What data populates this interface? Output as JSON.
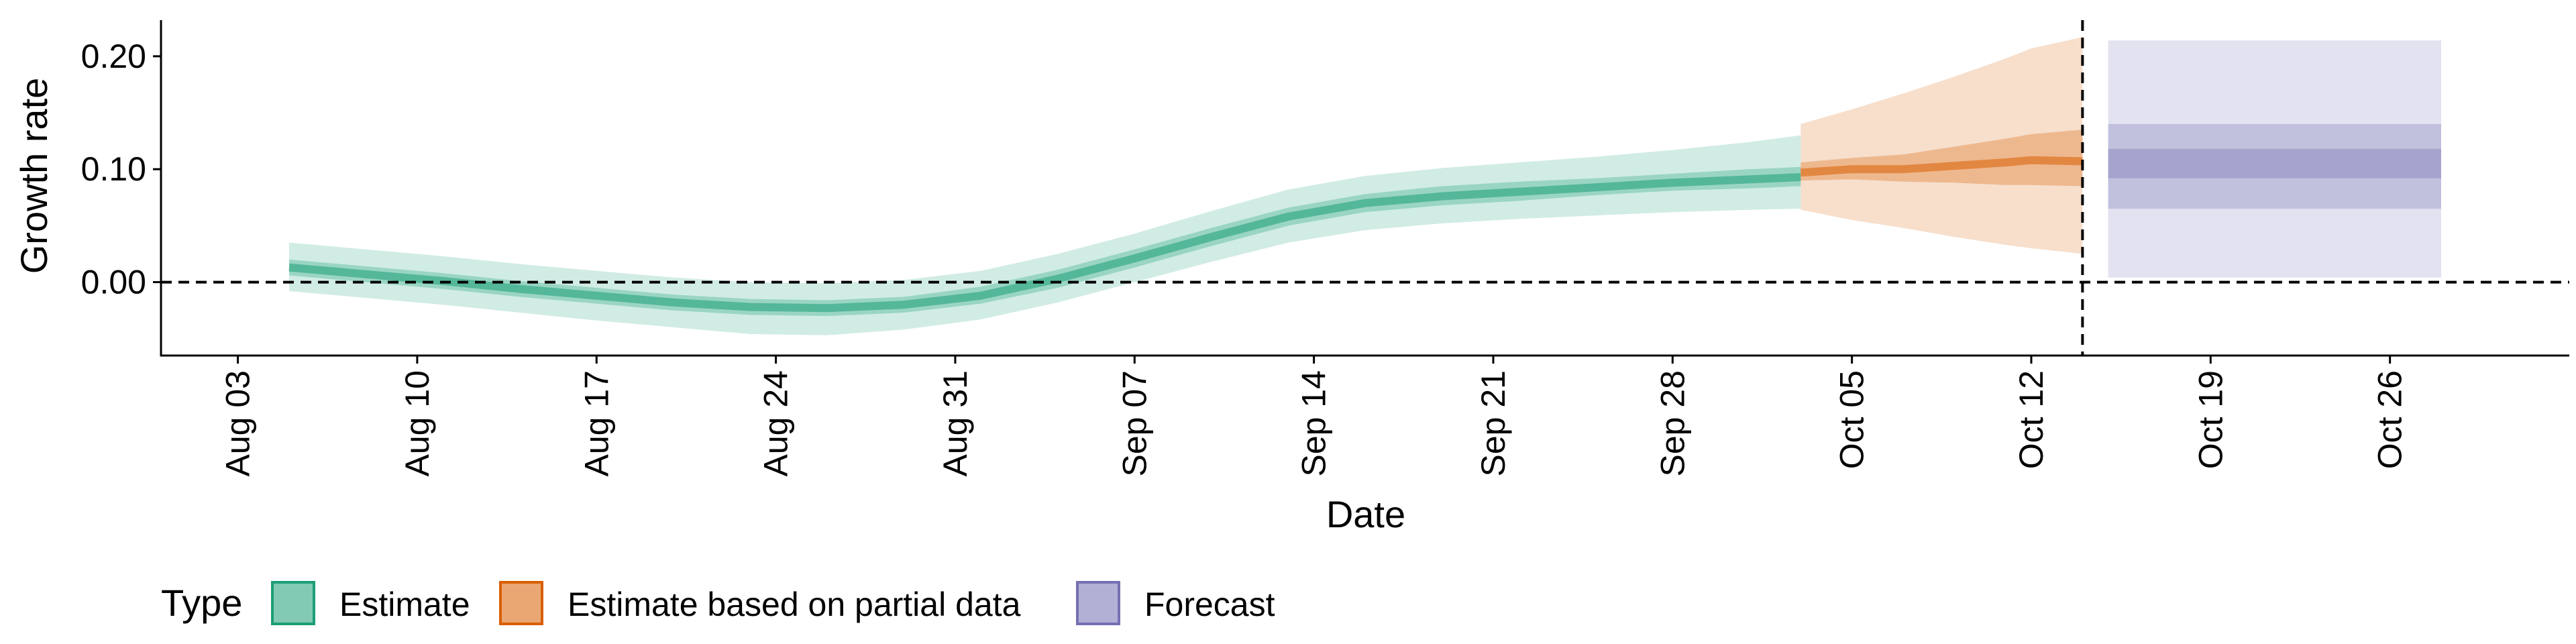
{
  "chart_data": {
    "type": "area",
    "xlabel": "Date",
    "ylabel": "Growth rate",
    "x_range": [
      "2020-07-31",
      "2020-11-02"
    ],
    "ylim": [
      -0.065,
      0.232
    ],
    "x_ticks": [
      {
        "date": "2020-08-03",
        "label": "Aug 03"
      },
      {
        "date": "2020-08-10",
        "label": "Aug 10"
      },
      {
        "date": "2020-08-17",
        "label": "Aug 17"
      },
      {
        "date": "2020-08-24",
        "label": "Aug 24"
      },
      {
        "date": "2020-08-31",
        "label": "Aug 31"
      },
      {
        "date": "2020-09-07",
        "label": "Sep 07"
      },
      {
        "date": "2020-09-14",
        "label": "Sep 14"
      },
      {
        "date": "2020-09-21",
        "label": "Sep 21"
      },
      {
        "date": "2020-09-28",
        "label": "Sep 28"
      },
      {
        "date": "2020-10-05",
        "label": "Oct 05"
      },
      {
        "date": "2020-10-12",
        "label": "Oct 12"
      },
      {
        "date": "2020-10-19",
        "label": "Oct 19"
      },
      {
        "date": "2020-10-26",
        "label": "Oct 26"
      }
    ],
    "y_ticks": [
      {
        "value": 0.0,
        "label": "0.00"
      },
      {
        "value": 0.1,
        "label": "0.10"
      },
      {
        "value": 0.2,
        "label": "0.20"
      }
    ],
    "reference_lines": {
      "horizontal_y": 0.0,
      "vertical_date": "2020-10-14"
    },
    "legend": {
      "title": "Type",
      "position": "bottom-left",
      "items": [
        {
          "label": "Estimate",
          "color": "#1b9e77"
        },
        {
          "label": "Estimate based on partial data",
          "color": "#d95f02"
        },
        {
          "label": "Forecast",
          "color": "#7570b3"
        }
      ]
    },
    "series": [
      {
        "type": "Estimate",
        "color": "#1b9e77",
        "dates": [
          "2020-08-05",
          "2020-08-08",
          "2020-08-11",
          "2020-08-14",
          "2020-08-17",
          "2020-08-20",
          "2020-08-23",
          "2020-08-26",
          "2020-08-29",
          "2020-09-01",
          "2020-09-04",
          "2020-09-07",
          "2020-09-10",
          "2020-09-13",
          "2020-09-16",
          "2020-09-19",
          "2020-09-22",
          "2020-09-25",
          "2020-09-28",
          "2020-10-01",
          "2020-10-03"
        ],
        "median": [
          0.013,
          0.007,
          0.001,
          -0.006,
          -0.012,
          -0.018,
          -0.022,
          -0.023,
          -0.02,
          -0.012,
          0.003,
          0.021,
          0.04,
          0.058,
          0.07,
          0.076,
          0.08,
          0.084,
          0.088,
          0.091,
          0.093
        ],
        "lower_50": [
          0.006,
          0.0,
          -0.006,
          -0.013,
          -0.019,
          -0.025,
          -0.029,
          -0.03,
          -0.027,
          -0.019,
          -0.005,
          0.013,
          0.032,
          0.05,
          0.062,
          0.068,
          0.072,
          0.077,
          0.081,
          0.083,
          0.085
        ],
        "upper_50": [
          0.02,
          0.014,
          0.008,
          0.001,
          -0.005,
          -0.011,
          -0.015,
          -0.016,
          -0.013,
          -0.004,
          0.011,
          0.029,
          0.048,
          0.066,
          0.078,
          0.085,
          0.089,
          0.092,
          0.096,
          0.1,
          0.102
        ],
        "lower_90": [
          -0.008,
          -0.014,
          -0.02,
          -0.027,
          -0.034,
          -0.04,
          -0.046,
          -0.047,
          -0.042,
          -0.033,
          -0.018,
          0.0,
          0.018,
          0.035,
          0.046,
          0.052,
          0.056,
          0.059,
          0.062,
          0.064,
          0.065
        ],
        "upper_90": [
          0.035,
          0.029,
          0.023,
          0.016,
          0.01,
          0.004,
          0.0,
          -0.001,
          0.002,
          0.01,
          0.025,
          0.043,
          0.063,
          0.082,
          0.094,
          0.101,
          0.106,
          0.111,
          0.117,
          0.124,
          0.13
        ]
      },
      {
        "type": "Estimate based on partial data",
        "color": "#d95f02",
        "dates": [
          "2020-10-03",
          "2020-10-05",
          "2020-10-07",
          "2020-10-09",
          "2020-10-11",
          "2020-10-12",
          "2020-10-14"
        ],
        "median": [
          0.097,
          0.1,
          0.1,
          0.103,
          0.106,
          0.108,
          0.107
        ],
        "lower_50": [
          0.09,
          0.091,
          0.089,
          0.088,
          0.086,
          0.086,
          0.085
        ],
        "upper_50": [
          0.106,
          0.11,
          0.113,
          0.12,
          0.127,
          0.131,
          0.135
        ],
        "lower_90": [
          0.064,
          0.055,
          0.048,
          0.04,
          0.033,
          0.03,
          0.025
        ],
        "upper_90": [
          0.14,
          0.153,
          0.167,
          0.182,
          0.198,
          0.207,
          0.217
        ]
      },
      {
        "type": "Forecast",
        "color": "#7570b3",
        "dates": [
          "2020-10-15",
          "2020-10-28"
        ],
        "lower_90": [
          0.004,
          0.004
        ],
        "upper_90": [
          0.214,
          0.214
        ],
        "lower_50": [
          0.065,
          0.065
        ],
        "upper_50": [
          0.14,
          0.14
        ],
        "lower_20": [
          0.092,
          0.092
        ],
        "upper_20": [
          0.118,
          0.118
        ]
      }
    ]
  }
}
